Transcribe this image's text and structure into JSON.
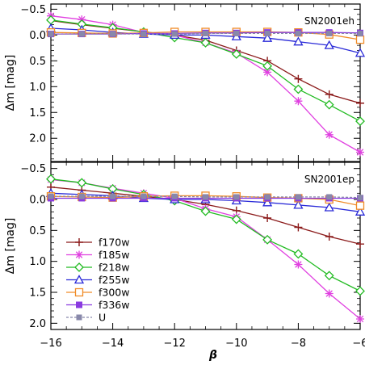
{
  "chart_data": [
    {
      "type": "line",
      "label": "SN2001eh",
      "ylabel": "Δm [mag]",
      "xlim": [
        -16,
        -6
      ],
      "ylim": [
        2.45,
        -0.6
      ],
      "y_inverted": true,
      "x_ticks": [
        -16,
        -14,
        -12,
        -10,
        -8,
        -6
      ],
      "y_ticks": [
        -0.5,
        0.0,
        0.5,
        1.0,
        1.5,
        2.0
      ],
      "y_tick_labels": [
        "−0.5",
        "0.0",
        "0.5",
        "1.0",
        "1.5",
        "2.0"
      ],
      "x": [
        -16,
        -15,
        -14,
        -13,
        -12,
        -11,
        -10,
        -9,
        -8,
        -7,
        -6
      ],
      "series": [
        {
          "name": "f170w",
          "color": "#8b1a1a",
          "marker": "plus",
          "values": [
            -0.28,
            -0.2,
            -0.13,
            -0.06,
            0.0,
            0.1,
            0.3,
            0.5,
            0.85,
            1.15,
            1.32
          ]
        },
        {
          "name": "f185w",
          "color": "#e040e0",
          "marker": "star",
          "values": [
            -0.37,
            -0.3,
            -0.2,
            -0.05,
            0.0,
            0.15,
            0.35,
            0.72,
            1.28,
            1.93,
            2.27
          ]
        },
        {
          "name": "f218w",
          "color": "#22bb22",
          "marker": "diamond",
          "values": [
            -0.29,
            -0.21,
            -0.14,
            -0.06,
            0.05,
            0.15,
            0.37,
            0.6,
            1.05,
            1.35,
            1.67
          ]
        },
        {
          "name": "f255w",
          "color": "#2a2ad8",
          "marker": "triangle",
          "values": [
            -0.13,
            -0.1,
            -0.05,
            -0.02,
            0.0,
            0.0,
            0.03,
            0.06,
            0.13,
            0.2,
            0.35
          ]
        },
        {
          "name": "f300w",
          "color": "#f08c28",
          "marker": "square-open",
          "values": [
            -0.05,
            -0.04,
            -0.03,
            -0.04,
            -0.06,
            -0.06,
            -0.06,
            -0.06,
            -0.05,
            -0.01,
            0.09
          ]
        },
        {
          "name": "f336w",
          "color": "#8a3ae0",
          "marker": "square-filled",
          "values": [
            -0.02,
            -0.02,
            -0.02,
            -0.03,
            -0.03,
            -0.04,
            -0.04,
            -0.05,
            -0.05,
            -0.05,
            -0.04
          ]
        },
        {
          "name": "U",
          "color": "#8888aa",
          "marker": "square-gray",
          "dashed": true,
          "values": [
            -0.02,
            -0.02,
            -0.02,
            -0.02,
            -0.02,
            -0.03,
            -0.03,
            -0.03,
            -0.03,
            -0.03,
            -0.03
          ]
        }
      ]
    },
    {
      "type": "line",
      "label": "SN2001ep",
      "xlabel": "β",
      "ylabel": "Δm [mag]",
      "xlim": [
        -16,
        -6
      ],
      "ylim": [
        2.1,
        -0.6
      ],
      "y_inverted": true,
      "x_ticks": [
        -16,
        -14,
        -12,
        -10,
        -8,
        -6
      ],
      "x_tick_labels": [
        "−16",
        "−14",
        "−12",
        "−10",
        "−8",
        "−6"
      ],
      "y_ticks": [
        -0.5,
        0.0,
        0.5,
        1.0,
        1.5,
        2.0
      ],
      "y_tick_labels": [
        "−0.5",
        "0.0",
        "0.5",
        "1.0",
        "1.5",
        "2.0"
      ],
      "x": [
        -16,
        -15,
        -14,
        -13,
        -12,
        -11,
        -10,
        -9,
        -8,
        -7,
        -6
      ],
      "series": [
        {
          "name": "f170w",
          "color": "#8b1a1a",
          "marker": "plus",
          "values": [
            -0.2,
            -0.15,
            -0.1,
            -0.05,
            0.0,
            0.08,
            0.18,
            0.3,
            0.45,
            0.6,
            0.72
          ]
        },
        {
          "name": "f185w",
          "color": "#e040e0",
          "marker": "star",
          "values": [
            -0.32,
            -0.27,
            -0.18,
            -0.1,
            -0.02,
            0.15,
            0.28,
            0.65,
            1.05,
            1.52,
            1.93
          ]
        },
        {
          "name": "f218w",
          "color": "#22bb22",
          "marker": "diamond",
          "values": [
            -0.33,
            -0.27,
            -0.17,
            -0.08,
            0.02,
            0.19,
            0.32,
            0.65,
            0.88,
            1.23,
            1.48
          ]
        },
        {
          "name": "f255w",
          "color": "#2a2ad8",
          "marker": "triangle",
          "values": [
            -0.1,
            -0.08,
            -0.06,
            -0.02,
            0.0,
            0.0,
            0.02,
            0.05,
            0.09,
            0.13,
            0.2
          ]
        },
        {
          "name": "f300w",
          "color": "#f08c28",
          "marker": "square-open",
          "values": [
            -0.05,
            -0.04,
            -0.03,
            -0.05,
            -0.06,
            -0.06,
            -0.05,
            -0.03,
            -0.02,
            0.0,
            0.1
          ]
        },
        {
          "name": "f336w",
          "color": "#8a3ae0",
          "marker": "square-filled",
          "values": [
            -0.02,
            -0.02,
            -0.02,
            -0.02,
            -0.02,
            -0.02,
            -0.02,
            -0.02,
            -0.02,
            -0.02,
            -0.02
          ]
        },
        {
          "name": "U",
          "color": "#8888aa",
          "marker": "square-gray",
          "dashed": true,
          "values": [
            -0.05,
            -0.05,
            -0.05,
            -0.05,
            -0.05,
            -0.04,
            -0.04,
            -0.04,
            -0.04,
            -0.04,
            -0.03
          ]
        }
      ],
      "legend": "bottom-left"
    }
  ]
}
